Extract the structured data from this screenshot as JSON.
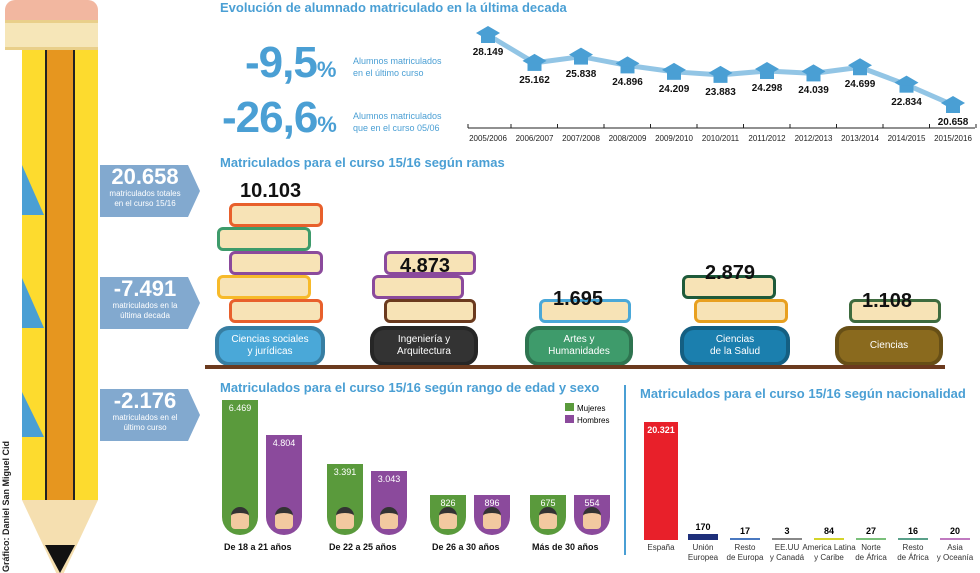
{
  "credit": "Gráfico: Daniel San Miguel Cid",
  "evolution": {
    "title": "Evolución de alumnado matriculado en la última decada",
    "stat1": {
      "value": "-9,5",
      "unit": "%",
      "line1": "Alumnos matriculados",
      "line2": "en el último curso"
    },
    "stat2": {
      "value": "-26,6",
      "unit": "%",
      "line1": "Alumnos matriculados",
      "line2": "que en el curso 05/06"
    }
  },
  "side_stats": [
    {
      "value": "20.658",
      "line1": "matriculados totales",
      "line2": "en el curso 15/16"
    },
    {
      "value": "-7.491",
      "line1": "matriculados en la",
      "line2": "última decada"
    },
    {
      "value": "-2.176",
      "line1": "matriculados en el",
      "line2": "último curso"
    }
  ],
  "ramas": {
    "title": "Matriculados para el curso 15/16 según ramas",
    "items": [
      {
        "label1": "Ciencias sociales",
        "label2": "y jurídicas",
        "value": "10.103",
        "color": "#4aa8d8"
      },
      {
        "label1": "Ingeniería y",
        "label2": "Arquitectura",
        "value": "4.873",
        "color": "#333333"
      },
      {
        "label1": "Artes y",
        "label2": "Humanidades",
        "value": "1.695",
        "color": "#3e9b6b"
      },
      {
        "label1": "Ciencias",
        "label2": "de la Salud",
        "value": "2.879",
        "color": "#1b7fae"
      },
      {
        "label1": "Ciencias",
        "label2": "",
        "value": "1.108",
        "color": "#8a6a1e"
      }
    ]
  },
  "edad": {
    "title": "Matriculados para el curso 15/16 según rango de edad y sexo",
    "legend": [
      "Mujeres",
      "Hombres"
    ],
    "groups": [
      "De 18 a 21 años",
      "De 22 a 25 años",
      "De 26 a 30 años",
      "Más de 30 años"
    ]
  },
  "nacionalidad": {
    "title": "Matriculados para el curso 15/16 según nacionalidad"
  },
  "chart_data": [
    {
      "type": "line",
      "title": "Evolución de alumnado matriculado en la última decada",
      "categories": [
        "2005/2006",
        "2006/2007",
        "2007/2008",
        "2008/2009",
        "2009/2010",
        "2010/2011",
        "2011/2012",
        "2012/2013",
        "2013/2014",
        "2014/2015",
        "2015/2016"
      ],
      "values": [
        28149,
        25162,
        25838,
        24896,
        24209,
        23883,
        24298,
        24039,
        24699,
        22834,
        20658
      ],
      "labels": [
        "28.149",
        "25.162",
        "25.838",
        "24.896",
        "24.209",
        "23.883",
        "24.298",
        "24.039",
        "24.699",
        "22.834",
        "20.658"
      ]
    },
    {
      "type": "bar",
      "title": "Matriculados para el curso 15/16 según rango de edad y sexo",
      "categories": [
        "De 18 a 21 años",
        "De 22 a 25 años",
        "De 26 a 30 años",
        "Más de 30 años"
      ],
      "series": [
        {
          "name": "Mujeres",
          "color": "#5a9a3c",
          "values": [
            6469,
            3391,
            826,
            675
          ],
          "labels": [
            "6.469",
            "3.391",
            "826",
            "675"
          ]
        },
        {
          "name": "Hombres",
          "color": "#8b4a9c",
          "values": [
            4804,
            3043,
            896,
            554
          ],
          "labels": [
            "4.804",
            "3.043",
            "896",
            "554"
          ]
        }
      ]
    },
    {
      "type": "bar",
      "title": "Matriculados para el curso 15/16 según nacionalidad",
      "categories": [
        [
          "España",
          ""
        ],
        [
          "Unión",
          "Europea"
        ],
        [
          "Resto",
          "de Europa"
        ],
        [
          "EE.UU",
          "y Canadá"
        ],
        [
          "America Latina",
          "y Caribe"
        ],
        [
          "Norte",
          "de África"
        ],
        [
          "Resto",
          "de África"
        ],
        [
          "Asia",
          "y Oceanía"
        ]
      ],
      "values": [
        20321,
        170,
        17,
        3,
        84,
        27,
        16,
        20
      ],
      "labels": [
        "20.321",
        "170",
        "17",
        "3",
        "84",
        "27",
        "16",
        "20"
      ],
      "colors": [
        "#e8202a",
        "#1e2f7a",
        "#4a78c0",
        "#888888",
        "#d4d42a",
        "#7ac07a",
        "#5aa08a",
        "#c07ac0"
      ]
    }
  ]
}
